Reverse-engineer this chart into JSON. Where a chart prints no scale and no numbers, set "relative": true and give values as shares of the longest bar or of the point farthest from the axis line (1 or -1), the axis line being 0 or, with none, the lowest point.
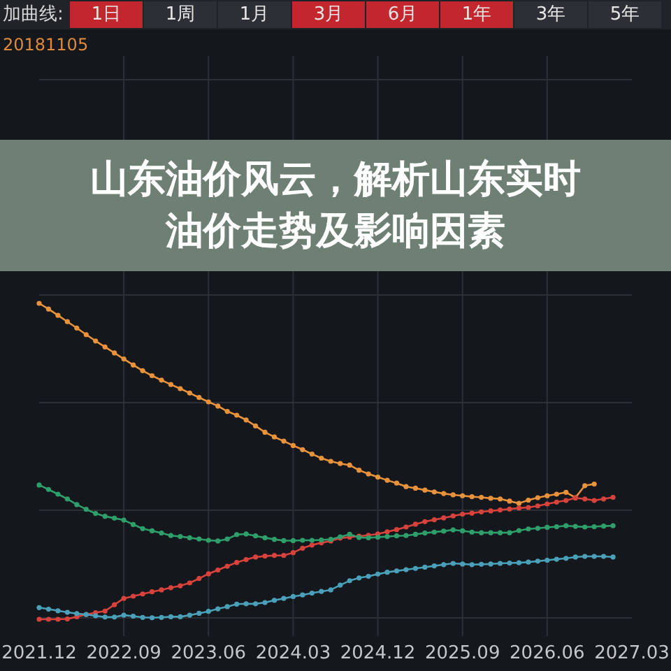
{
  "chart_data": {
    "type": "line",
    "title": "山东油价风云，解析山东实时油价走势及影响因素",
    "annotations": [
      "加曲线:",
      "1日",
      "1周",
      "1月",
      "3月",
      "6月",
      "1年",
      "3年",
      "5年",
      "20181105"
    ],
    "x": [
      "2021-12",
      "2022-01",
      "2022-02",
      "2022-03",
      "2022-04",
      "2022-05",
      "2022-06",
      "2022-07",
      "2022-08",
      "2022-09",
      "2022-10",
      "2022-11",
      "2022-12",
      "2023-01",
      "2023-02",
      "2023-03",
      "2023-04",
      "2023-05",
      "2023-06",
      "2023-07",
      "2023-08",
      "2023-09",
      "2023-10",
      "2023-11",
      "2023-12",
      "2024-01",
      "2024-02",
      "2024-03",
      "2024-04",
      "2024-05",
      "2024-06",
      "2024-07",
      "2024-08",
      "2024-09",
      "2024-10",
      "2024-11",
      "2024-12",
      "2025-01",
      "2025-02",
      "2025-03",
      "2025-04",
      "2025-05",
      "2025-06",
      "2025-07",
      "2025-08",
      "2025-09",
      "2025-10",
      "2025-11",
      "2025-12",
      "2026-01",
      "2026-02",
      "2026-03",
      "2026-04",
      "2026-05",
      "2026-06",
      "2026-07",
      "2026-08",
      "2026-09",
      "2026-10",
      "2026-11",
      "2026-12",
      "2027-01"
    ],
    "xlim": [
      "2021-12",
      "2027-03"
    ],
    "xticks": [
      {
        "value": "2021-12",
        "label": "2021.12"
      },
      {
        "value": "2022-09",
        "label": "2022.09"
      },
      {
        "value": "2023-06",
        "label": "2023.06"
      },
      {
        "value": "2024-03",
        "label": "2024.03"
      },
      {
        "value": "2024-12",
        "label": "2024.12"
      },
      {
        "value": "2025-09",
        "label": "2025.09"
      },
      {
        "value": "2026-06",
        "label": "2026.06"
      },
      {
        "value": "2027-03",
        "label": "2027.03"
      }
    ],
    "relative": true,
    "grid": true,
    "marker": "circle",
    "line_style": "solid",
    "series": [
      {
        "color": "#e8923c",
        "values": [
          1.0,
          0.982,
          0.962,
          0.942,
          0.922,
          0.901,
          0.881,
          0.862,
          0.843,
          0.824,
          0.805,
          0.787,
          0.771,
          0.757,
          0.743,
          0.73,
          0.716,
          0.702,
          0.688,
          0.675,
          0.658,
          0.646,
          0.631,
          0.612,
          0.592,
          0.577,
          0.564,
          0.55,
          0.537,
          0.523,
          0.51,
          0.5,
          0.493,
          0.488,
          0.472,
          0.46,
          0.45,
          0.44,
          0.431,
          0.42,
          0.415,
          0.409,
          0.403,
          0.398,
          0.394,
          0.391,
          0.388,
          0.386,
          0.383,
          0.381,
          0.374,
          0.367,
          0.377,
          0.385,
          0.391,
          0.396,
          0.402,
          0.385,
          0.423,
          0.428,
          null,
          null
        ]
      },
      {
        "color": "#d8423c",
        "values": [
          0.0,
          0.0,
          0.0,
          0.001,
          0.008,
          0.015,
          0.021,
          0.026,
          0.046,
          0.066,
          0.073,
          0.08,
          0.087,
          0.093,
          0.1,
          0.106,
          0.115,
          0.129,
          0.144,
          0.156,
          0.168,
          0.18,
          0.189,
          0.197,
          0.2,
          0.202,
          0.202,
          0.211,
          0.225,
          0.235,
          0.242,
          0.248,
          0.257,
          0.26,
          0.263,
          0.266,
          0.27,
          0.277,
          0.284,
          0.292,
          0.301,
          0.309,
          0.315,
          0.321,
          0.327,
          0.333,
          0.336,
          0.34,
          0.343,
          0.346,
          0.349,
          0.352,
          0.354,
          0.359,
          0.365,
          0.371,
          0.376,
          0.384,
          0.381,
          0.376,
          0.381,
          0.386
        ]
      },
      {
        "color": "#2e9e6a",
        "values": [
          0.425,
          0.411,
          0.396,
          0.381,
          0.363,
          0.348,
          0.335,
          0.326,
          0.32,
          0.314,
          0.3,
          0.287,
          0.28,
          0.273,
          0.265,
          0.262,
          0.258,
          0.254,
          0.25,
          0.248,
          0.254,
          0.268,
          0.27,
          0.264,
          0.258,
          0.253,
          0.249,
          0.249,
          0.25,
          0.25,
          0.251,
          0.253,
          0.261,
          0.269,
          0.259,
          0.258,
          0.26,
          0.262,
          0.264,
          0.265,
          0.269,
          0.273,
          0.276,
          0.279,
          0.283,
          0.28,
          0.276,
          0.274,
          0.274,
          0.274,
          0.274,
          0.281,
          0.286,
          0.288,
          0.291,
          0.293,
          0.296,
          0.294,
          0.292,
          0.293,
          0.295,
          0.296
        ]
      },
      {
        "color": "#4aa0b8",
        "values": [
          0.037,
          0.032,
          0.027,
          0.022,
          0.018,
          0.015,
          0.011,
          0.007,
          0.007,
          0.013,
          0.01,
          0.006,
          0.005,
          0.006,
          0.008,
          0.008,
          0.013,
          0.019,
          0.025,
          0.033,
          0.04,
          0.048,
          0.049,
          0.049,
          0.053,
          0.06,
          0.066,
          0.072,
          0.077,
          0.083,
          0.088,
          0.093,
          0.108,
          0.122,
          0.131,
          0.136,
          0.143,
          0.149,
          0.153,
          0.157,
          0.161,
          0.165,
          0.169,
          0.173,
          0.177,
          0.175,
          0.173,
          0.174,
          0.175,
          0.177,
          0.178,
          0.179,
          0.181,
          0.184,
          0.187,
          0.19,
          0.193,
          0.197,
          0.199,
          0.199,
          0.199,
          0.197
        ]
      }
    ]
  }
}
